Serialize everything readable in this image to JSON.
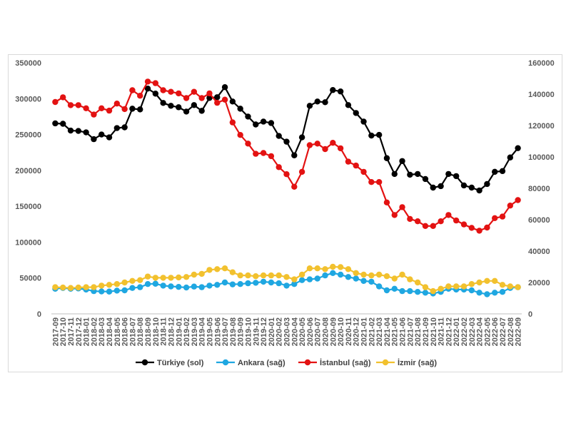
{
  "chart_data": {
    "type": "line",
    "categories": [
      "2017-09",
      "2017-10",
      "2017-11",
      "2017-12",
      "2018-01",
      "2018-02",
      "2018-03",
      "2018-04",
      "2018-05",
      "2018-06",
      "2018-07",
      "2018-08",
      "2018-09",
      "2018-10",
      "2018-11",
      "2018-12",
      "2019-01",
      "2019-02",
      "2019-03",
      "2019-04",
      "2019-05",
      "2019-06",
      "2019-07",
      "2019-08",
      "2019-09",
      "2019-10",
      "2019-11",
      "2019-12",
      "2020-01",
      "2020-02",
      "2020-03",
      "2020-04",
      "2020-05",
      "2020-06",
      "2020-07",
      "2020-08",
      "2020-09",
      "2020-10",
      "2020-11",
      "2020-12",
      "2021-01",
      "2021-02",
      "2021-03",
      "2021-04",
      "2021-05",
      "2021-06",
      "2021-07",
      "2021-08",
      "2021-09",
      "2021-10",
      "2021-11",
      "2021-12",
      "2022-01",
      "2022-02",
      "2022-03",
      "2022-04",
      "2022-05",
      "2022-06",
      "2022-07",
      "2022-08",
      "2022-09"
    ],
    "left_axis": {
      "min": 0,
      "max": 350000,
      "ticks": [
        "0",
        "50000",
        "100000",
        "150000",
        "200000",
        "250000",
        "300000",
        "350000"
      ]
    },
    "right_axis": {
      "min": 0,
      "max": 160000,
      "ticks": [
        "0",
        "20000",
        "40000",
        "60000",
        "80000",
        "100000",
        "120000",
        "140000",
        "160000"
      ]
    },
    "grid": false,
    "legend_position": "bottom",
    "series": [
      {
        "name": "Türkiye (sol)",
        "axis": "left",
        "color": "#000000",
        "values": [
          265500,
          265000,
          255500,
          255000,
          253000,
          243500,
          250000,
          246000,
          259000,
          260000,
          286000,
          285000,
          314000,
          307000,
          294000,
          290000,
          288000,
          282000,
          291000,
          283000,
          301000,
          302000,
          316000,
          296000,
          286000,
          275000,
          264000,
          268000,
          266000,
          248000,
          240000,
          221000,
          246000,
          290000,
          296000,
          295000,
          312000,
          310000,
          291000,
          280000,
          268000,
          248500,
          249500,
          217000,
          195000,
          213000,
          194000,
          195000,
          188000,
          176000,
          178000,
          195000,
          192000,
          179000,
          176000,
          172000,
          181000,
          198000,
          199000,
          218000,
          231000
        ]
      },
      {
        "name": "Ankara (sağ)",
        "axis": "right",
        "color": "#1fa7e1",
        "values": [
          16000,
          16500,
          16000,
          16200,
          15500,
          14500,
          14300,
          14200,
          14800,
          15000,
          16500,
          17000,
          19000,
          19200,
          18000,
          17500,
          17200,
          16800,
          17400,
          17000,
          18000,
          18500,
          20000,
          18800,
          19000,
          19500,
          19800,
          20500,
          20000,
          19500,
          18000,
          19000,
          21500,
          22000,
          22500,
          24500,
          26000,
          25000,
          23500,
          22500,
          21000,
          20500,
          17500,
          15000,
          16000,
          14500,
          14500,
          14000,
          13500,
          13000,
          14000,
          16000,
          15500,
          15500,
          15000,
          13500,
          12500,
          13500,
          14000,
          16500,
          17000
        ]
      },
      {
        "name": "İstanbul (sağ)",
        "axis": "right",
        "color": "#e31212",
        "values": [
          135000,
          138000,
          133000,
          133000,
          131000,
          127000,
          131000,
          129500,
          134000,
          130500,
          142500,
          139000,
          148000,
          147000,
          142500,
          141500,
          140500,
          137500,
          141500,
          137500,
          140500,
          134500,
          136500,
          122000,
          114000,
          108500,
          102000,
          102500,
          100500,
          93500,
          89000,
          81000,
          90500,
          107500,
          108500,
          105000,
          109000,
          105500,
          97000,
          94500,
          90500,
          84000,
          84000,
          71000,
          63000,
          68000,
          60500,
          59000,
          56000,
          56000,
          59000,
          63000,
          59500,
          57000,
          54800,
          53000,
          55000,
          61000,
          62000,
          69000,
          72500
        ]
      },
      {
        "name": "İzmir (sağ)",
        "axis": "right",
        "color": "#f2c12e",
        "values": [
          17000,
          16800,
          16500,
          16800,
          17000,
          17000,
          18000,
          18500,
          19000,
          20000,
          21000,
          21500,
          23800,
          23000,
          23000,
          23000,
          23200,
          23500,
          25000,
          25500,
          28000,
          28500,
          29000,
          26500,
          24500,
          24500,
          24000,
          24500,
          24500,
          24500,
          23500,
          22000,
          25000,
          29000,
          29000,
          28500,
          30000,
          29800,
          28500,
          26000,
          25000,
          24500,
          25000,
          24000,
          22500,
          25000,
          22000,
          20000,
          17000,
          14500,
          16000,
          17500,
          17500,
          17500,
          19000,
          20000,
          21000,
          21000,
          18500,
          17500,
          17000
        ]
      }
    ]
  }
}
